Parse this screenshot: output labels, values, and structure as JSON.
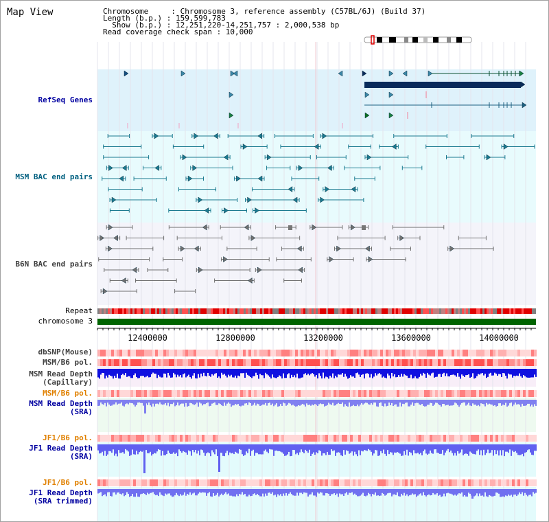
{
  "title": "Map View",
  "info": {
    "chromosome_key": "Chromosome",
    "chromosome_val": ": Chromosome 3, reference assembly (C57BL/6J) (Build 37)",
    "length_key": "Length (b.p.)",
    "length_val": ": 159,599,783",
    "show_key": "Show (b.p.)",
    "show_val": ": 12,251,220-14,251,757 : 2,000,538 bp",
    "coverage": "Read coverage check span : 10,000"
  },
  "tracks": {
    "refseq": "RefSeq Genes",
    "msm_bac": "MSM BAC end pairs",
    "b6n_bac": "B6N BAC end pairs",
    "repeat": "Repeat",
    "chromosome": "chromosome 3",
    "dbsnp": "dbSNP(Mouse)",
    "msm_b6_pol": "MSM/B6 pol.",
    "msm_depth_cap_1": "MSM Read Depth",
    "msm_depth_cap_2": "(Capillary)",
    "msm_b6_pol_2": "MSM/B6 pol.",
    "msm_depth_sra_1": "MSM Read Depth",
    "msm_depth_sra_2": "(SRA)",
    "jf1_b6_pol": "JF1/B6 pol.",
    "jf1_depth_sra_1": "JF1 Read Depth",
    "jf1_depth_sra_2": "(SRA)",
    "jf1_b6_pol_2": "JF1/B6 pol.",
    "jf1_depth_trim_1": "JF1 Read Depth",
    "jf1_depth_trim_2": "(SRA trimmed)"
  },
  "axis_ticks": [
    "12400000",
    "12800000",
    "13200000",
    "13600000",
    "14000000"
  ],
  "colors": {
    "refseq_label": "#0000a0",
    "msm_bac_label": "#006080",
    "b6n_label": "#404040",
    "pol_orange": "#e08000",
    "depth_blue": "#0000c0",
    "chromosome_green": "#006400"
  }
}
